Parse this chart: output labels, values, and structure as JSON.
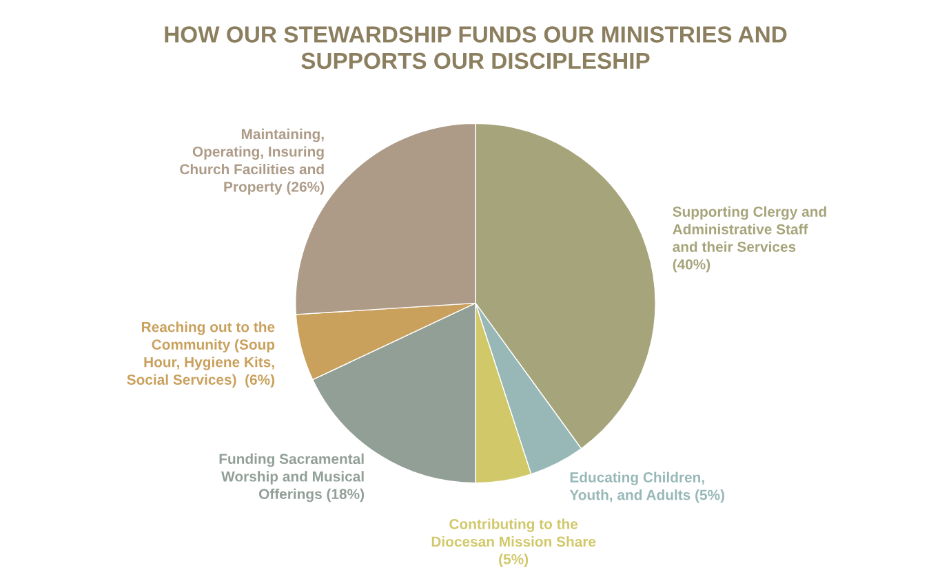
{
  "chart_data": {
    "type": "pie",
    "title": "HOW OUR STEWARDSHIP FUNDS OUR MINISTRIES AND\nSUPPORTS OUR DISCIPLESHIP",
    "categories": [
      "Supporting Clergy and\nAdministrative Staff\nand their Services\n(40%)",
      "Educating Children,\nYouth, and Adults (5%)",
      "Contributing to the\nDiocesan Mission Share\n(5%)",
      "Funding Sacramental\nWorship and Musical\nOfferings (18%)",
      "Reaching out to the\nCommunity (Soup\nHour, Hygiene Kits,\nSocial Services)  (6%)",
      "Maintaining,\nOperating, Insuring\nChurch Facilities and\nProperty (26%)"
    ],
    "values": [
      40,
      5,
      5,
      18,
      6,
      26
    ],
    "colors": [
      "#a6a47a",
      "#98b8b8",
      "#d1c86a",
      "#919f97",
      "#c9a05c",
      "#ad9b87"
    ]
  }
}
